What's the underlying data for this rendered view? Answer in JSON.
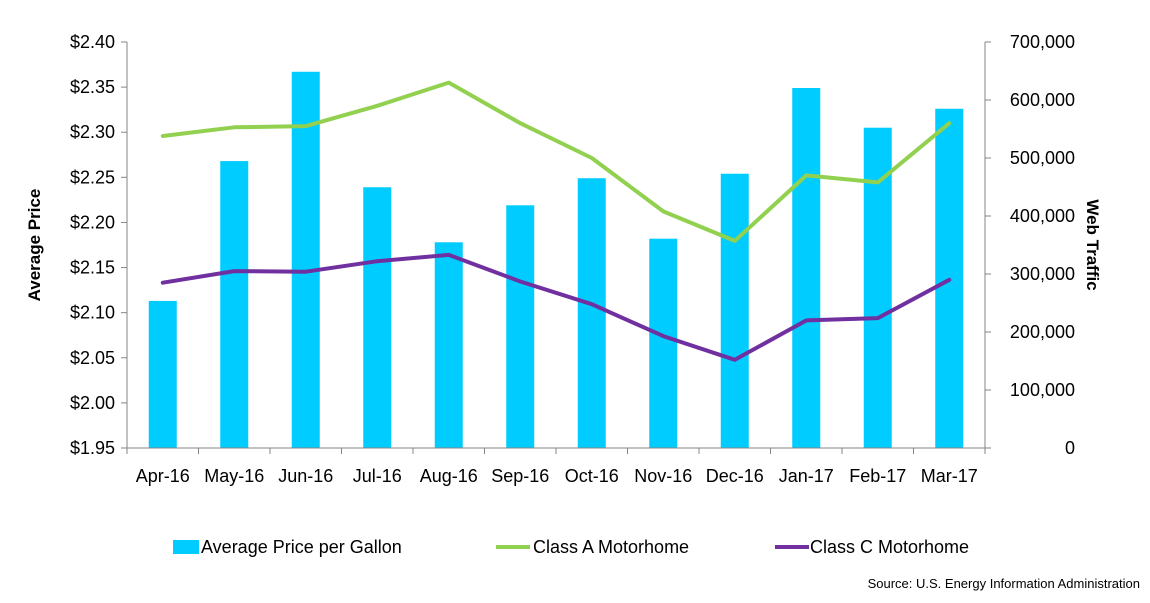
{
  "chart_data": {
    "type": "bar",
    "categories": [
      "Apr-16",
      "May-16",
      "Jun-16",
      "Jul-16",
      "Aug-16",
      "Sep-16",
      "Oct-16",
      "Nov-16",
      "Dec-16",
      "Jan-17",
      "Feb-17",
      "Mar-17"
    ],
    "bar_series": {
      "name": "Average Price per Gallon",
      "axis": "left",
      "color": "#00CCFF",
      "values": [
        2.113,
        2.268,
        2.367,
        2.239,
        2.178,
        2.219,
        2.249,
        2.182,
        2.254,
        2.349,
        2.305,
        2.326
      ]
    },
    "line_series": [
      {
        "name": "Class A Motorhome",
        "axis": "right",
        "color": "#92D050",
        "values": [
          538000,
          553000,
          555000,
          590000,
          630000,
          560000,
          500000,
          408000,
          357000,
          470000,
          458000,
          560000
        ]
      },
      {
        "name": "Class C Motorhome",
        "axis": "right",
        "color": "#7030A0",
        "values": [
          285000,
          305000,
          304000,
          322000,
          333000,
          287000,
          248000,
          193000,
          152000,
          220000,
          224000,
          290000
        ]
      }
    ],
    "left_axis": {
      "label": "Average Price",
      "min": 1.95,
      "max": 2.4,
      "step": 0.05,
      "ticks": [
        "$1.95",
        "$2.00",
        "$2.05",
        "$2.10",
        "$2.15",
        "$2.20",
        "$2.25",
        "$2.30",
        "$2.35",
        "$2.40"
      ]
    },
    "right_axis": {
      "label": "Web Traffic",
      "min": 0,
      "max": 700000,
      "step": 100000,
      "ticks": [
        "0",
        "100,000",
        "200,000",
        "300,000",
        "400,000",
        "500,000",
        "600,000",
        "700,000"
      ]
    },
    "grid": false,
    "legend_position": "bottom",
    "source": "Source: U.S. Energy Information Administration"
  }
}
